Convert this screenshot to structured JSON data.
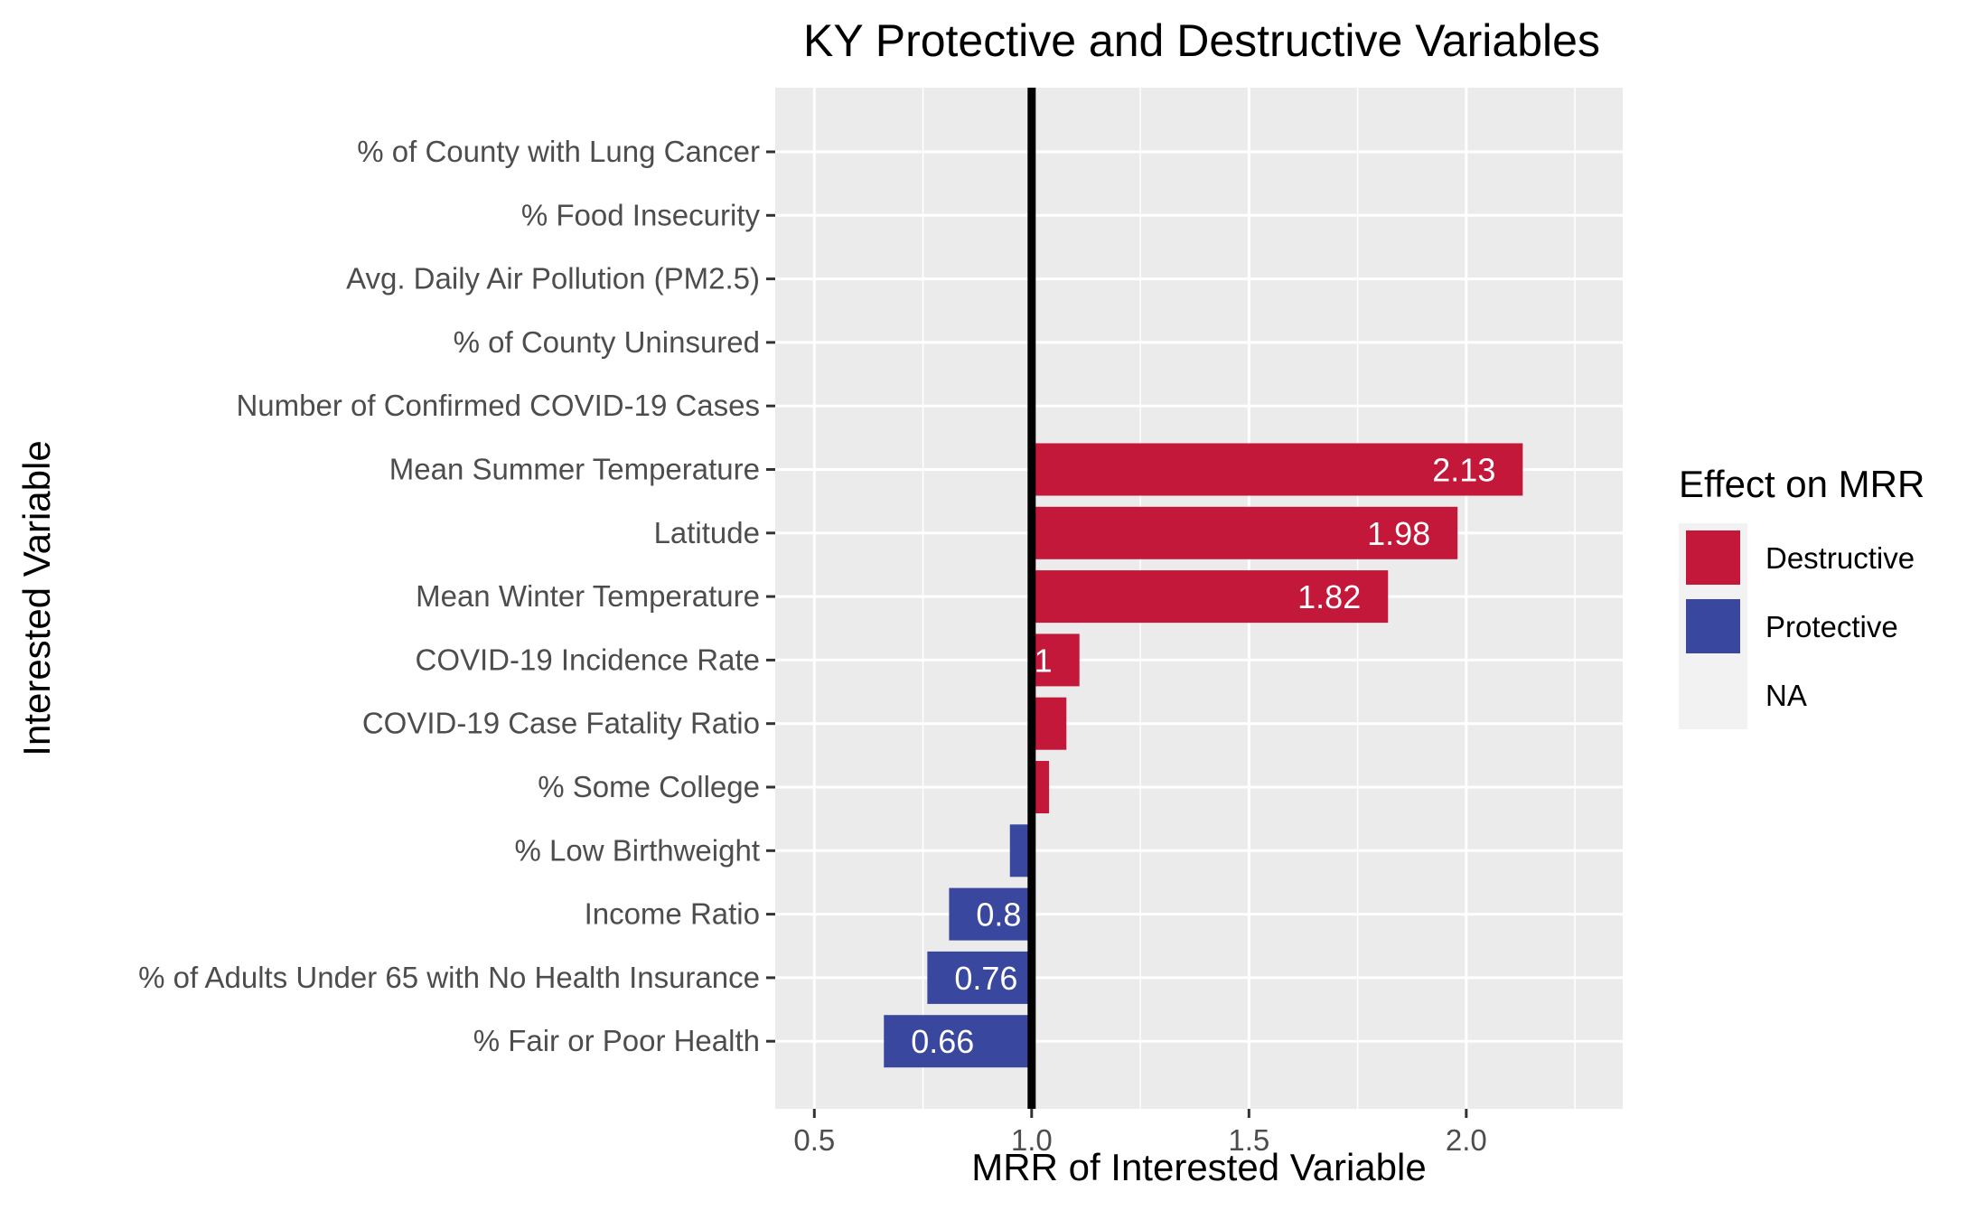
{
  "chart_data": {
    "type": "bar",
    "orientation": "horizontal",
    "title": "KY Protective and Destructive Variables",
    "xlabel": "MRR of Interested Variable",
    "ylabel": "Interested Variable",
    "xlim": [
      0.41,
      2.36
    ],
    "xticks": [
      0.5,
      1.0,
      1.5,
      2.0
    ],
    "xtick_labels": [
      "0.5",
      "1.0",
      "1.5",
      "2.0"
    ],
    "reference_line": 1.0,
    "grid": true,
    "legend": {
      "title": "Effect on MRR",
      "position": "right",
      "entries": [
        {
          "label": "Destructive",
          "color": "#C4183B"
        },
        {
          "label": "Protective",
          "color": "#3A479E"
        },
        {
          "label": "NA",
          "color": "#F2F2F2"
        }
      ]
    },
    "categories": [
      "% Fair or Poor Health",
      "% of Adults Under 65 with No Health Insurance",
      "Income Ratio",
      "% Low Birthweight",
      "% Some College",
      "COVID-19 Case Fatality Ratio",
      "COVID-19 Incidence Rate",
      "Mean Winter Temperature",
      "Latitude",
      "Mean Summer Temperature",
      "Number of Confirmed COVID-19 Cases",
      "% of County Uninsured",
      "Avg. Daily Air Pollution (PM2.5)",
      "% Food Insecurity",
      "% of County with Lung Cancer"
    ],
    "values": [
      0.66,
      0.76,
      0.81,
      0.95,
      1.04,
      1.08,
      1.11,
      1.82,
      1.98,
      2.13,
      null,
      null,
      null,
      null,
      null
    ],
    "effects": [
      "Protective",
      "Protective",
      "Protective",
      "Protective",
      "Destructive",
      "Destructive",
      "Destructive",
      "Destructive",
      "Destructive",
      "Destructive",
      "NA",
      "NA",
      "NA",
      "NA",
      "NA"
    ],
    "data_labels": [
      "0.66",
      "0.76",
      "0.8",
      "",
      "",
      "",
      "1",
      "1.82",
      "1.98",
      "2.13",
      "",
      "",
      "",
      "",
      ""
    ]
  }
}
